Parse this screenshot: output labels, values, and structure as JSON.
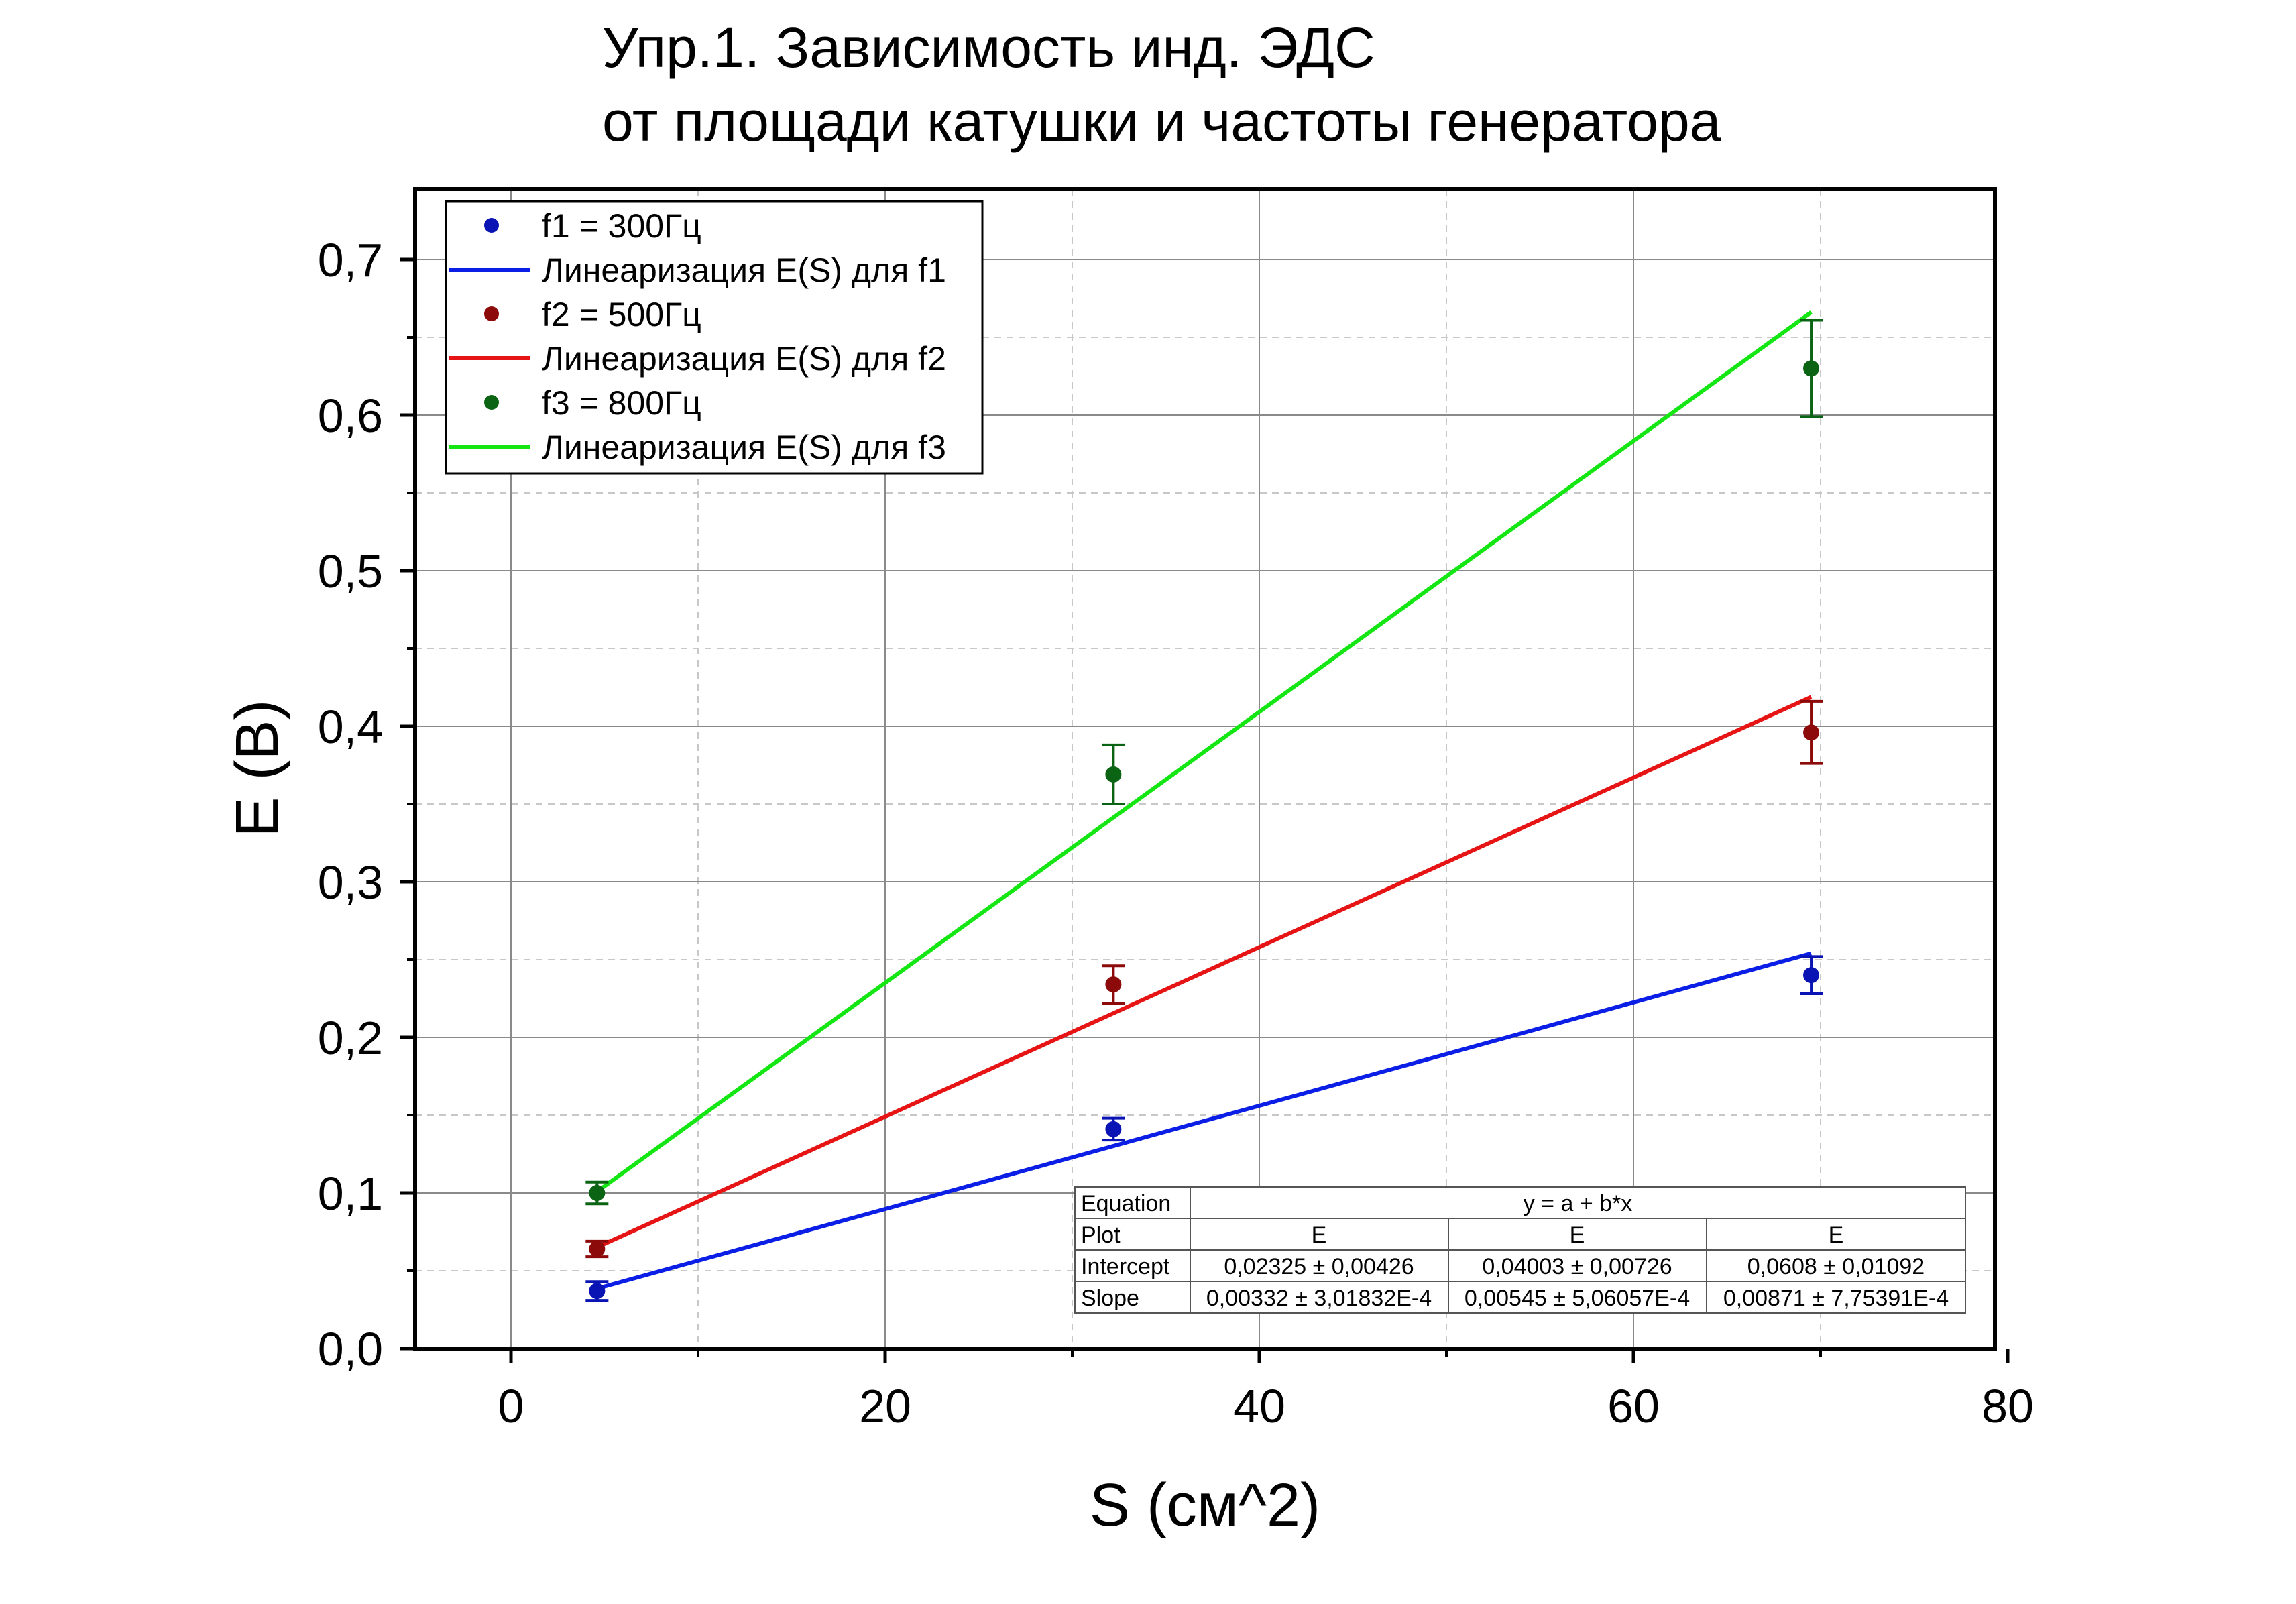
{
  "chart_data": {
    "type": "scatter",
    "title_lines": [
      "Упр.1. Зависимость инд. ЭДС",
      "от площади катушки и частоты генератора"
    ],
    "xlabel": "S (см^2)",
    "ylabel": "E (В)",
    "xlim": [
      -5,
      80
    ],
    "ylim": [
      0,
      0.75
    ],
    "x_ticks": [
      0,
      20,
      40,
      60,
      80
    ],
    "x_tick_labels": [
      "0",
      "20",
      "40",
      "60",
      "80"
    ],
    "y_ticks": [
      0,
      0.1,
      0.2,
      0.3,
      0.4,
      0.5,
      0.6,
      0.7
    ],
    "y_tick_labels": [
      "0,0",
      "0,1",
      "0,2",
      "0,3",
      "0,4",
      "0,5",
      "0,6",
      "0,7"
    ],
    "grid": true,
    "legend_position": "top-left",
    "series": [
      {
        "name": "f1 = 300Гц",
        "marker_color": "#0a14b4",
        "x": [
          4.6,
          32.2,
          69.5
        ],
        "y": [
          0.037,
          0.141,
          0.24
        ],
        "y_err": [
          0.006,
          0.007,
          0.012
        ],
        "fit_name": "Линеаризация E(S) для f1",
        "fit_color": "#0a1ee6",
        "fit_intercept": 0.02325,
        "fit_slope": 0.00332,
        "fit_x": [
          4.6,
          69.5
        ]
      },
      {
        "name": "f2 = 500Гц",
        "marker_color": "#8c0a0a",
        "x": [
          4.6,
          32.2,
          69.5
        ],
        "y": [
          0.064,
          0.234,
          0.396
        ],
        "y_err": [
          0.005,
          0.012,
          0.02
        ],
        "fit_name": "Линеаризация E(S) для f2",
        "fit_color": "#e61414",
        "fit_intercept": 0.04003,
        "fit_slope": 0.00545,
        "fit_x": [
          4.6,
          69.5
        ]
      },
      {
        "name": "f3 = 800Гц",
        "marker_color": "#0a6414",
        "x": [
          4.6,
          32.2,
          69.5
        ],
        "y": [
          0.1,
          0.369,
          0.63
        ],
        "y_err": [
          0.007,
          0.019,
          0.031
        ],
        "fit_name": "Линеаризация E(S) для f3",
        "fit_color": "#14e614",
        "fit_intercept": 0.0608,
        "fit_slope": 0.00871,
        "fit_x": [
          4.6,
          69.5
        ]
      }
    ],
    "fit_table": {
      "rows": [
        [
          "Equation",
          "y = a + b*x"
        ],
        [
          "Plot",
          "E",
          "E",
          "E"
        ],
        [
          "Intercept",
          "0,02325 ± 0,00426",
          "0,04003 ± 0,00726",
          "0,0608 ± 0,01092"
        ],
        [
          "Slope",
          "0,00332 ± 3,01832E-4",
          "0,00545 ± 5,06057E-4",
          "0,00871 ± 7,75391E-4"
        ]
      ]
    }
  }
}
